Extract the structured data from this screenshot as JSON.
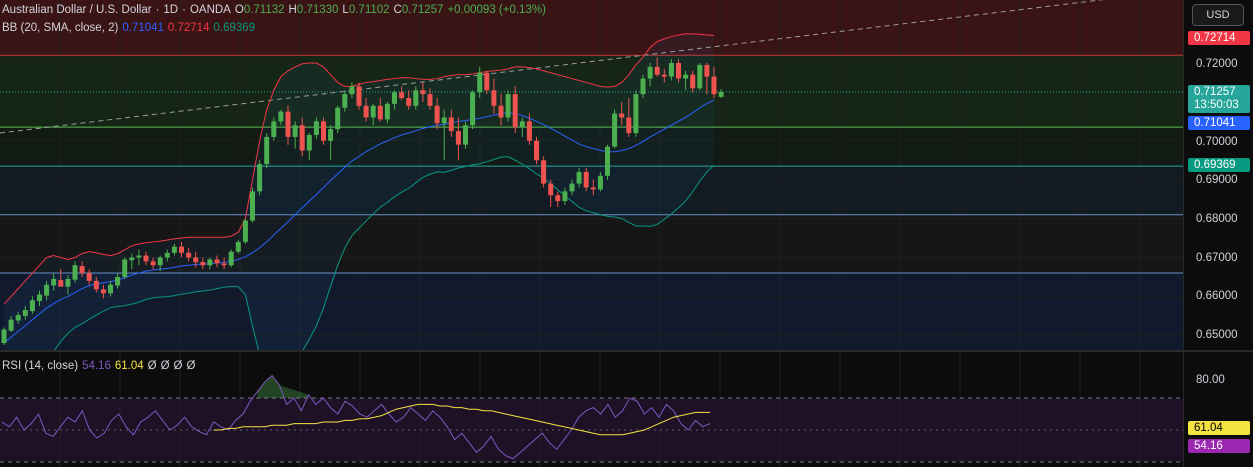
{
  "header": {
    "symbol": "Australian Dollar / U.S. Dollar",
    "sep1": "·",
    "timeframe": "1D",
    "sep2": "·",
    "broker": "OANDA",
    "open_label": "O",
    "open": "0.71132",
    "high_label": "H",
    "high": "0.71330",
    "low_label": "L",
    "low": "0.71102",
    "close_label": "C",
    "close": "0.71257",
    "change": "+0.00093 (+0.13%)"
  },
  "bb_legend": {
    "label": "BB (20, SMA, close, 2)",
    "basis": "0.71041",
    "upper": "0.72714",
    "lower": "0.69369"
  },
  "rsi_legend": {
    "label": "RSI (14, close)",
    "rsi": "54.16",
    "ma": "61.04",
    "na1": "Ø",
    "na2": "Ø",
    "na3": "Ø",
    "na4": "Ø"
  },
  "price_scale": {
    "currency_button": "USD",
    "ticks": [
      "0.72000",
      "0.70000",
      "0.69000",
      "0.68000",
      "0.67000",
      "0.66000",
      "0.65000"
    ],
    "tags": {
      "upper_band": "0.72714",
      "last_price": "0.71257",
      "countdown": "13:50:03",
      "basis": "0.71041",
      "lower_band": "0.69369"
    }
  },
  "rsi_scale": {
    "ticks": [
      "80.00"
    ],
    "tags": {
      "ma": "61.04",
      "rsi": "54.16"
    }
  },
  "colors": {
    "up": "#26a69a",
    "up_candle": "#4caf50",
    "down_candle": "#ef5350",
    "bb_upper": "#f23645",
    "bb_basis": "#2962ff",
    "bb_lower": "#089981",
    "rsi_line": "#7e57c2",
    "rsi_ma": "#f5e342",
    "tag_upper": "#f23645",
    "tag_last": "#26a69a",
    "tag_basis": "#2962ff",
    "tag_lower": "#089981",
    "tag_rsi_ma": "#f5e342",
    "tag_rsi": "#9c27b0"
  },
  "chart_data": {
    "type": "candlestick",
    "axis_ticks": [
      0.72,
      0.7,
      0.69,
      0.68,
      0.67,
      0.66,
      0.65
    ],
    "candles": [
      [
        0.648,
        0.652,
        0.6475,
        0.6515
      ],
      [
        0.6512,
        0.655,
        0.6508,
        0.654
      ],
      [
        0.6538,
        0.656,
        0.653,
        0.6552
      ],
      [
        0.655,
        0.6575,
        0.654,
        0.6565
      ],
      [
        0.6562,
        0.66,
        0.6555,
        0.659
      ],
      [
        0.6588,
        0.6615,
        0.6575,
        0.6605
      ],
      [
        0.6602,
        0.664,
        0.659,
        0.663
      ],
      [
        0.6628,
        0.666,
        0.6615,
        0.6645
      ],
      [
        0.6642,
        0.667,
        0.663,
        0.6625
      ],
      [
        0.6625,
        0.6655,
        0.6605,
        0.6645
      ],
      [
        0.6643,
        0.669,
        0.6635,
        0.668
      ],
      [
        0.6678,
        0.669,
        0.665,
        0.666
      ],
      [
        0.666,
        0.667,
        0.663,
        0.664
      ],
      [
        0.664,
        0.665,
        0.661,
        0.6618
      ],
      [
        0.6618,
        0.663,
        0.6595,
        0.6608
      ],
      [
        0.6608,
        0.664,
        0.66,
        0.663
      ],
      [
        0.6628,
        0.666,
        0.662,
        0.665
      ],
      [
        0.665,
        0.67,
        0.6645,
        0.6695
      ],
      [
        0.6693,
        0.671,
        0.667,
        0.67
      ],
      [
        0.67,
        0.672,
        0.668,
        0.6705
      ],
      [
        0.6705,
        0.6715,
        0.668,
        0.669
      ],
      [
        0.669,
        0.67,
        0.667,
        0.668
      ],
      [
        0.668,
        0.6705,
        0.6665,
        0.67
      ],
      [
        0.67,
        0.672,
        0.669,
        0.6712
      ],
      [
        0.6712,
        0.6735,
        0.6705,
        0.6728
      ],
      [
        0.6728,
        0.674,
        0.67,
        0.6712
      ],
      [
        0.6712,
        0.6725,
        0.669,
        0.67
      ],
      [
        0.67,
        0.6715,
        0.6675,
        0.6688
      ],
      [
        0.6688,
        0.67,
        0.667,
        0.668
      ],
      [
        0.668,
        0.67,
        0.667,
        0.6695
      ],
      [
        0.6695,
        0.6705,
        0.6675,
        0.6685
      ],
      [
        0.6685,
        0.67,
        0.667,
        0.668
      ],
      [
        0.668,
        0.672,
        0.6675,
        0.6715
      ],
      [
        0.6715,
        0.6745,
        0.671,
        0.674
      ],
      [
        0.674,
        0.68,
        0.6735,
        0.6795
      ],
      [
        0.6795,
        0.688,
        0.679,
        0.687
      ],
      [
        0.687,
        0.695,
        0.686,
        0.694
      ],
      [
        0.694,
        0.702,
        0.693,
        0.701
      ],
      [
        0.701,
        0.706,
        0.7,
        0.705
      ],
      [
        0.705,
        0.708,
        0.704,
        0.7075
      ],
      [
        0.7075,
        0.709,
        0.699,
        0.701
      ],
      [
        0.701,
        0.705,
        0.698,
        0.704
      ],
      [
        0.704,
        0.706,
        0.696,
        0.6975
      ],
      [
        0.6975,
        0.702,
        0.695,
        0.7015
      ],
      [
        0.7015,
        0.706,
        0.7005,
        0.705
      ],
      [
        0.705,
        0.706,
        0.699,
        0.7
      ],
      [
        0.7,
        0.704,
        0.695,
        0.703
      ],
      [
        0.703,
        0.709,
        0.702,
        0.7085
      ],
      [
        0.7085,
        0.713,
        0.7075,
        0.712
      ],
      [
        0.712,
        0.715,
        0.711,
        0.714
      ],
      [
        0.714,
        0.715,
        0.708,
        0.709
      ],
      [
        0.709,
        0.711,
        0.705,
        0.706
      ],
      [
        0.706,
        0.7095,
        0.704,
        0.709
      ],
      [
        0.709,
        0.711,
        0.705,
        0.7055
      ],
      [
        0.7055,
        0.71,
        0.7045,
        0.7095
      ],
      [
        0.7095,
        0.713,
        0.708,
        0.7125
      ],
      [
        0.7125,
        0.714,
        0.7105,
        0.711
      ],
      [
        0.711,
        0.713,
        0.708,
        0.709
      ],
      [
        0.709,
        0.714,
        0.708,
        0.713
      ],
      [
        0.713,
        0.715,
        0.71,
        0.712
      ],
      [
        0.712,
        0.7135,
        0.708,
        0.709
      ],
      [
        0.709,
        0.711,
        0.703,
        0.7045
      ],
      [
        0.7045,
        0.708,
        0.695,
        0.706
      ],
      [
        0.706,
        0.708,
        0.701,
        0.7025
      ],
      [
        0.7025,
        0.706,
        0.695,
        0.699
      ],
      [
        0.699,
        0.705,
        0.698,
        0.704
      ],
      [
        0.704,
        0.713,
        0.703,
        0.7125
      ],
      [
        0.7125,
        0.719,
        0.711,
        0.7175
      ],
      [
        0.7175,
        0.718,
        0.712,
        0.713
      ],
      [
        0.713,
        0.716,
        0.707,
        0.709
      ],
      [
        0.709,
        0.712,
        0.704,
        0.706
      ],
      [
        0.706,
        0.713,
        0.705,
        0.712
      ],
      [
        0.712,
        0.714,
        0.702,
        0.7035
      ],
      [
        0.7035,
        0.706,
        0.701,
        0.705
      ],
      [
        0.705,
        0.707,
        0.699,
        0.7
      ],
      [
        0.7,
        0.701,
        0.694,
        0.695
      ],
      [
        0.695,
        0.696,
        0.688,
        0.689
      ],
      [
        0.689,
        0.69,
        0.683,
        0.686
      ],
      [
        0.686,
        0.687,
        0.683,
        0.6845
      ],
      [
        0.6845,
        0.688,
        0.6835,
        0.687
      ],
      [
        0.687,
        0.69,
        0.686,
        0.689
      ],
      [
        0.689,
        0.693,
        0.688,
        0.692
      ],
      [
        0.692,
        0.693,
        0.687,
        0.688
      ],
      [
        0.688,
        0.69,
        0.686,
        0.6875
      ],
      [
        0.6875,
        0.692,
        0.687,
        0.691
      ],
      [
        0.691,
        0.699,
        0.69,
        0.6985
      ],
      [
        0.6985,
        0.708,
        0.698,
        0.707
      ],
      [
        0.707,
        0.71,
        0.704,
        0.706
      ],
      [
        0.706,
        0.711,
        0.701,
        0.702
      ],
      [
        0.702,
        0.713,
        0.701,
        0.712
      ],
      [
        0.712,
        0.717,
        0.711,
        0.716
      ],
      [
        0.716,
        0.72,
        0.714,
        0.719
      ],
      [
        0.719,
        0.7215,
        0.7165,
        0.717
      ],
      [
        0.717,
        0.7185,
        0.715,
        0.7165
      ],
      [
        0.7165,
        0.721,
        0.7155,
        0.72
      ],
      [
        0.72,
        0.721,
        0.715,
        0.716
      ],
      [
        0.716,
        0.718,
        0.713,
        0.717
      ],
      [
        0.717,
        0.718,
        0.7125,
        0.7135
      ],
      [
        0.7135,
        0.72,
        0.713,
        0.7195
      ],
      [
        0.7195,
        0.72,
        0.712,
        0.7165
      ],
      [
        0.7165,
        0.719,
        0.711,
        0.712
      ],
      [
        0.7113,
        0.7133,
        0.711,
        0.7126
      ]
    ],
    "bb_upper": [
      0.658,
      0.66,
      0.662,
      0.664,
      0.666,
      0.668,
      0.67,
      0.6705,
      0.67,
      0.6695,
      0.67,
      0.671,
      0.6715,
      0.6712,
      0.6708,
      0.6705,
      0.671,
      0.672,
      0.673,
      0.6735,
      0.6738,
      0.674,
      0.6742,
      0.6745,
      0.6748,
      0.675,
      0.6752,
      0.6752,
      0.6752,
      0.6752,
      0.6752,
      0.6752,
      0.6755,
      0.6765,
      0.68,
      0.69,
      0.7,
      0.708,
      0.713,
      0.7165,
      0.718,
      0.719,
      0.7198,
      0.72,
      0.72,
      0.719,
      0.717,
      0.715,
      0.714,
      0.714,
      0.7145,
      0.715,
      0.7152,
      0.7155,
      0.7158,
      0.716,
      0.7162,
      0.7162,
      0.716,
      0.7158,
      0.7158,
      0.716,
      0.7165,
      0.7168,
      0.717,
      0.717,
      0.7172,
      0.7175,
      0.7178,
      0.718,
      0.7182,
      0.7185,
      0.719,
      0.719,
      0.7188,
      0.7185,
      0.718,
      0.7175,
      0.717,
      0.7165,
      0.716,
      0.7155,
      0.715,
      0.7145,
      0.714,
      0.7138,
      0.714,
      0.715,
      0.717,
      0.7195,
      0.7215,
      0.724,
      0.7255,
      0.7262,
      0.7268,
      0.7272,
      0.7275,
      0.7275,
      0.7274,
      0.7272,
      0.7271
    ],
    "bb_basis": [
      0.648,
      0.6495,
      0.651,
      0.6525,
      0.654,
      0.6555,
      0.657,
      0.6582,
      0.6592,
      0.66,
      0.661,
      0.662,
      0.6628,
      0.6632,
      0.6635,
      0.6638,
      0.6642,
      0.6648,
      0.6655,
      0.666,
      0.6665,
      0.6668,
      0.667,
      0.6672,
      0.6675,
      0.6678,
      0.668,
      0.6682,
      0.6683,
      0.6684,
      0.6686,
      0.6688,
      0.669,
      0.6695,
      0.6702,
      0.6712,
      0.6725,
      0.674,
      0.6758,
      0.6775,
      0.6792,
      0.681,
      0.6828,
      0.6845,
      0.6862,
      0.688,
      0.6898,
      0.6915,
      0.6932,
      0.6948,
      0.696,
      0.6972,
      0.6982,
      0.6992,
      0.7,
      0.7008,
      0.7015,
      0.702,
      0.7026,
      0.7032,
      0.7036,
      0.704,
      0.7042,
      0.7046,
      0.705,
      0.7052,
      0.7055,
      0.7058,
      0.7062,
      0.7066,
      0.707,
      0.7072,
      0.707,
      0.7065,
      0.7058,
      0.705,
      0.7042,
      0.7032,
      0.7022,
      0.7012,
      0.7002,
      0.6992,
      0.6985,
      0.698,
      0.6975,
      0.6972,
      0.6972,
      0.6975,
      0.698,
      0.6988,
      0.6998,
      0.701,
      0.702,
      0.703,
      0.704,
      0.705,
      0.706,
      0.7072,
      0.7085,
      0.7096,
      0.7104
    ],
    "bb_lower": [
      0.638,
      0.639,
      0.64,
      0.641,
      0.642,
      0.643,
      0.644,
      0.6459,
      0.6484,
      0.6505,
      0.652,
      0.653,
      0.6541,
      0.6552,
      0.6562,
      0.6571,
      0.6574,
      0.6576,
      0.658,
      0.6585,
      0.6592,
      0.6596,
      0.6598,
      0.6599,
      0.6602,
      0.6606,
      0.6608,
      0.6612,
      0.6614,
      0.6616,
      0.662,
      0.6624,
      0.6625,
      0.6625,
      0.6604,
      0.6524,
      0.645,
      0.64,
      0.6386,
      0.6385,
      0.6404,
      0.643,
      0.6458,
      0.649,
      0.6524,
      0.657,
      0.6626,
      0.668,
      0.6724,
      0.6756,
      0.6775,
      0.6794,
      0.6812,
      0.6829,
      0.6842,
      0.6856,
      0.6868,
      0.6878,
      0.6892,
      0.6906,
      0.6914,
      0.692,
      0.6919,
      0.6924,
      0.693,
      0.6934,
      0.6938,
      0.6941,
      0.6946,
      0.6952,
      0.6958,
      0.6959,
      0.695,
      0.694,
      0.6928,
      0.6915,
      0.6904,
      0.6889,
      0.6874,
      0.6859,
      0.6844,
      0.6829,
      0.682,
      0.6815,
      0.681,
      0.6806,
      0.6804,
      0.68,
      0.679,
      0.6781,
      0.6781,
      0.678,
      0.6785,
      0.6798,
      0.6812,
      0.6828,
      0.6845,
      0.6869,
      0.6896,
      0.692,
      0.6937
    ],
    "horizontal_levels": [
      0.722,
      0.7035,
      0.6935,
      0.681,
      0.666
    ],
    "rsi": [
      55,
      52,
      58,
      50,
      54,
      60,
      48,
      46,
      52,
      58,
      55,
      62,
      50,
      45,
      48,
      56,
      60,
      52,
      47,
      55,
      58,
      62,
      56,
      50,
      53,
      58,
      52,
      49,
      47,
      55,
      52,
      50,
      56,
      60,
      68,
      74,
      80,
      84,
      78,
      66,
      70,
      62,
      72,
      66,
      70,
      64,
      60,
      68,
      65,
      60,
      58,
      62,
      66,
      60,
      55,
      58,
      64,
      60,
      56,
      62,
      58,
      52,
      44,
      48,
      42,
      36,
      40,
      46,
      38,
      34,
      32,
      36,
      40,
      44,
      48,
      42,
      38,
      44,
      50,
      58,
      62,
      64,
      60,
      66,
      58,
      62,
      70,
      68,
      60,
      64,
      58,
      66,
      62,
      54,
      50,
      56,
      52,
      54
    ],
    "rsi_ma": [
      50,
      50,
      51,
      51,
      52,
      52,
      52,
      52,
      53,
      53,
      53,
      54,
      54,
      54,
      54,
      55,
      55,
      55,
      56,
      56,
      57,
      57,
      58,
      59,
      61,
      63,
      64,
      65,
      66,
      66,
      66,
      65,
      65,
      64,
      64,
      63,
      63,
      62,
      62,
      61,
      60,
      59,
      58,
      57,
      56,
      55,
      54,
      53,
      52,
      51,
      50,
      49,
      48,
      47,
      47,
      47,
      47,
      48,
      49,
      50,
      52,
      54,
      56,
      58,
      59,
      60,
      61,
      61,
      61
    ]
  }
}
